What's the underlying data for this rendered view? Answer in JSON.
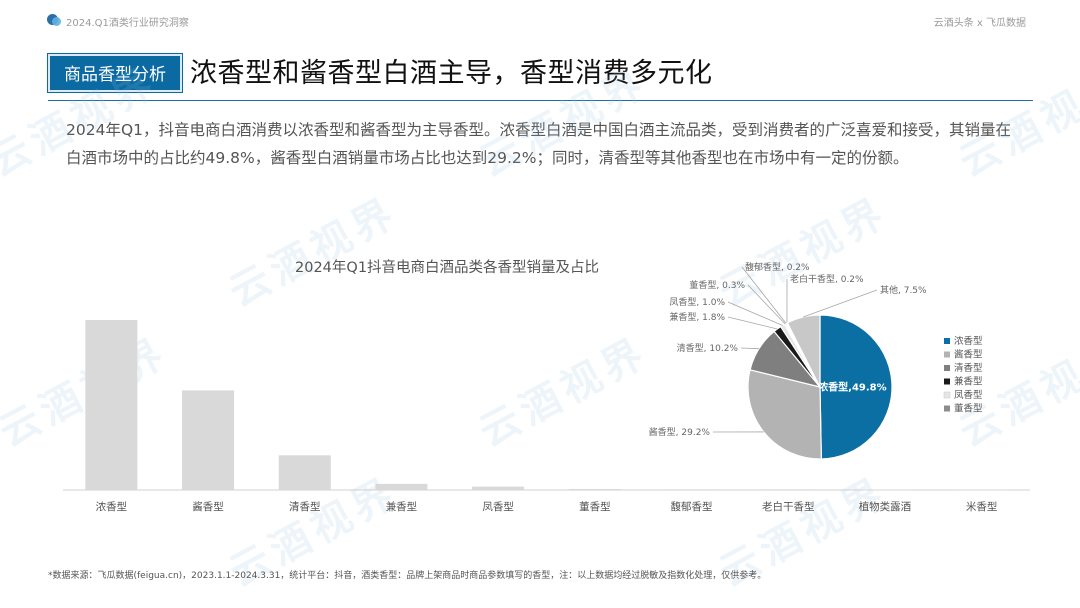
{
  "header": {
    "report_title": "2024.Q1酒类行业研究洞察",
    "brand": "云酒头条 x 飞瓜数据"
  },
  "section_tag": "商品香型分析",
  "main_title": "浓香型和酱香型白酒主导，香型消费多元化",
  "description": "2024年Q1，抖音电商白酒消费以浓香型和酱香型为主导香型。浓香型白酒是中国白酒主流品类，受到消费者的广泛喜爱和接受，其销量在白酒市场中的占比约49.8%，酱香型白酒销量市场占比也达到29.2%；同时，清香型等其他香型也在市场中有一定的份额。",
  "watermark_text": "云酒视界",
  "chart_data": [
    {
      "type": "bar",
      "title": "2024年Q1抖音电商白酒品类各香型销量及占比",
      "categories": [
        "浓香型",
        "酱香型",
        "清香型",
        "兼香型",
        "凤香型",
        "董香型",
        "馥郁香型",
        "老白干香型",
        "植物类露酒",
        "米香型"
      ],
      "values": [
        100,
        58.6,
        20.4,
        3.6,
        2.0,
        0.6,
        0.4,
        0.4,
        0.2,
        0.2
      ],
      "ylim": [
        0,
        110
      ],
      "bar_color": "#d9d9d9",
      "grid": false
    },
    {
      "type": "pie",
      "slices": [
        {
          "name": "浓香型",
          "label": "浓香型,49.8%",
          "value": 49.8,
          "color": "#0b6fa4"
        },
        {
          "name": "酱香型",
          "label": "酱香型, 29.2%",
          "value": 29.2,
          "color": "#b3b3b3"
        },
        {
          "name": "清香型",
          "label": "清香型, 10.2%",
          "value": 10.2,
          "color": "#7f7f7f"
        },
        {
          "name": "兼香型",
          "label": "兼香型, 1.8%",
          "value": 1.8,
          "color": "#1a1a1a"
        },
        {
          "name": "凤香型",
          "label": "凤香型, 1.0%",
          "value": 1.0,
          "color": "#e6e6e6"
        },
        {
          "name": "董香型",
          "label": "董香型, 0.3%",
          "value": 0.3,
          "color": "#8c8c8c"
        },
        {
          "name": "馥郁香型",
          "label": "馥郁香型, 0.2%",
          "value": 0.2,
          "color": "#a6a6a6"
        },
        {
          "name": "老白干香型",
          "label": "老白干香型, 0.2%",
          "value": 0.2,
          "color": "#595959"
        },
        {
          "name": "其他",
          "label": "其他, 7.5%",
          "value": 7.5,
          "color": "#c8c8c8"
        }
      ],
      "legend": [
        "浓香型",
        "酱香型",
        "清香型",
        "兼香型",
        "凤香型",
        "董香型"
      ],
      "legend_position": "right"
    }
  ],
  "footnote": "*数据来源：飞瓜数据(feigua.cn)，2023.1.1-2024.3.31，统计平台：抖音，酒类香型：品牌上架商品时商品参数填写的香型，注：以上数据均经过脱敏及指数化处理，仅供参考。"
}
